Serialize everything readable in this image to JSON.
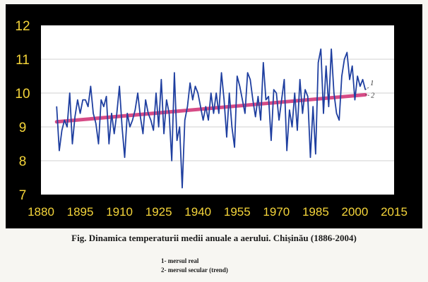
{
  "caption": "Fig.  Dinamica temperaturii medii anuale a aerului. Chișinău (1886-2004)",
  "legend": [
    {
      "marker": "1",
      "label": "1-  mersul real"
    },
    {
      "marker": "2",
      "label": "2-  mersul secular (trend)"
    }
  ],
  "colors": {
    "panel_background": "#000000",
    "plot_background": "#ffffff",
    "tick_labels": "#f5d53a",
    "actual_series": "#1f3fa0",
    "trend_series": "#d64b86",
    "grid": "#d2d2d2"
  },
  "chart_data": {
    "type": "line",
    "title": "",
    "xlabel": "",
    "ylabel": "",
    "xlim": [
      1880,
      2015
    ],
    "ylim": [
      7,
      12
    ],
    "x_ticks": [
      "1880",
      "1895",
      "1910",
      "1925",
      "1940",
      "1955",
      "1970",
      "1985",
      "2000",
      "2015"
    ],
    "y_ticks": [
      "7",
      "8",
      "9",
      "10",
      "11",
      "12"
    ],
    "grid": "horizontal",
    "series": [
      {
        "name": "1",
        "role": "actual",
        "x": [
          1886,
          1887,
          1888,
          1889,
          1890,
          1891,
          1892,
          1893,
          1894,
          1895,
          1896,
          1897,
          1898,
          1899,
          1900,
          1901,
          1902,
          1903,
          1904,
          1905,
          1906,
          1907,
          1908,
          1909,
          1910,
          1911,
          1912,
          1913,
          1914,
          1915,
          1916,
          1917,
          1918,
          1919,
          1920,
          1921,
          1922,
          1923,
          1924,
          1925,
          1926,
          1927,
          1928,
          1929,
          1930,
          1931,
          1932,
          1933,
          1934,
          1935,
          1936,
          1937,
          1938,
          1939,
          1940,
          1941,
          1942,
          1943,
          1944,
          1945,
          1946,
          1947,
          1948,
          1949,
          1950,
          1951,
          1952,
          1953,
          1954,
          1955,
          1956,
          1957,
          1958,
          1959,
          1960,
          1961,
          1962,
          1963,
          1964,
          1965,
          1966,
          1967,
          1968,
          1969,
          1970,
          1971,
          1972,
          1973,
          1974,
          1975,
          1976,
          1977,
          1978,
          1979,
          1980,
          1981,
          1982,
          1983,
          1984,
          1985,
          1986,
          1987,
          1988,
          1989,
          1990,
          1991,
          1992,
          1993,
          1994,
          1995,
          1996,
          1997,
          1998,
          1999,
          2000,
          2001,
          2002,
          2003,
          2004
        ],
        "y": [
          9.6,
          8.3,
          8.9,
          9.2,
          9.0,
          10.0,
          8.5,
          9.3,
          9.8,
          9.4,
          9.8,
          9.8,
          9.6,
          10.2,
          9.4,
          9.1,
          8.5,
          9.8,
          9.6,
          9.9,
          8.5,
          9.4,
          8.8,
          9.4,
          10.2,
          9.0,
          8.1,
          9.4,
          9.0,
          9.2,
          9.5,
          10.0,
          9.3,
          8.8,
          9.8,
          9.4,
          9.2,
          8.9,
          10.0,
          9.0,
          10.4,
          8.8,
          9.8,
          9.4,
          8.0,
          10.6,
          8.6,
          9.0,
          7.2,
          9.2,
          9.6,
          10.3,
          9.8,
          10.2,
          10.0,
          9.6,
          9.2,
          9.6,
          9.2,
          10.0,
          9.4,
          10.0,
          9.4,
          10.6,
          9.8,
          8.7,
          10.0,
          9.0,
          8.4,
          10.5,
          10.2,
          9.8,
          9.4,
          10.6,
          10.4,
          9.8,
          9.3,
          9.9,
          9.2,
          10.9,
          9.8,
          9.9,
          8.6,
          10.1,
          10.0,
          9.2,
          9.8,
          10.4,
          8.3,
          9.5,
          9.0,
          10.0,
          8.9,
          10.4,
          9.4,
          10.1,
          9.9,
          8.1,
          9.6,
          8.2,
          10.9,
          11.3,
          9.4,
          10.8,
          9.6,
          11.3,
          10.0,
          9.4,
          9.2,
          10.5,
          11.0,
          11.2,
          10.4,
          10.8,
          9.8,
          10.5,
          10.2,
          10.4,
          10.1
        ]
      },
      {
        "name": "2",
        "role": "trend",
        "x": [
          1886,
          2004
        ],
        "y": [
          9.15,
          9.95
        ]
      }
    ]
  }
}
